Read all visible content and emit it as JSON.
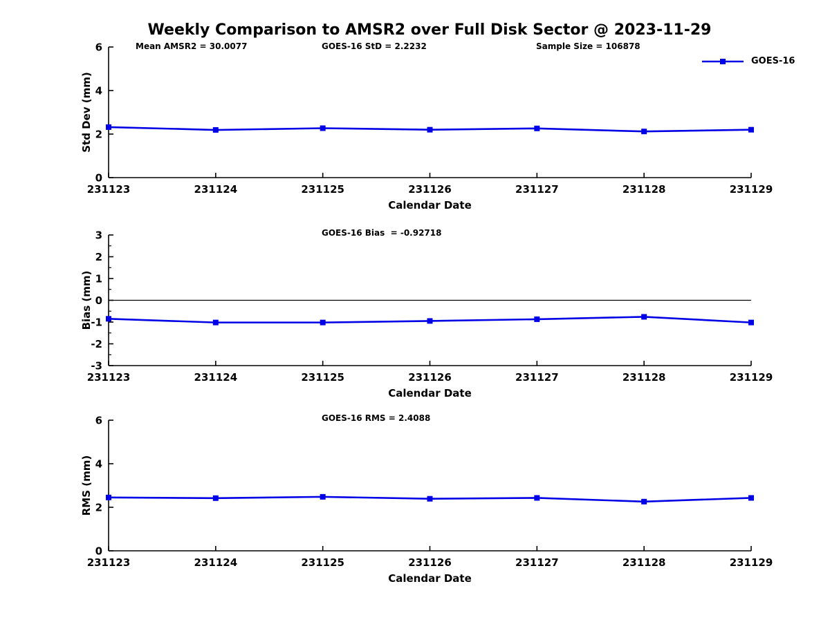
{
  "title": "Weekly Comparison to AMSR2 over Full Disk Sector @ 2023-11-29",
  "annotations": {
    "mean_amsr2": "Mean AMSR2 = 30.0077",
    "goes16_std": "GOES-16 StD = 2.2232",
    "sample_size": "Sample Size = 106878",
    "goes16_bias": "GOES-16 Bias  = -0.92718",
    "goes16_rms": "GOES-16 RMS = 2.4088"
  },
  "legend": {
    "label": "GOES-16"
  },
  "colors": {
    "line": "#0000e6",
    "axis": "#000000",
    "background": "#ffffff"
  },
  "chart_data": [
    {
      "id": "std_dev",
      "type": "line",
      "xlabel": "Calendar Date",
      "ylabel": "Std Dev (mm)",
      "categories": [
        "231123",
        "231124",
        "231125",
        "231126",
        "231127",
        "231128",
        "231129"
      ],
      "series": [
        {
          "name": "GOES-16",
          "values": [
            2.32,
            2.19,
            2.27,
            2.2,
            2.26,
            2.12,
            2.2
          ]
        }
      ],
      "ylim": [
        0,
        6
      ],
      "yticks": [
        0,
        2,
        4,
        6
      ],
      "yticks_minor": [],
      "zero_line": false,
      "grid": false,
      "legend_position": "upper-right-outside",
      "annotation": "GOES-16 StD = 2.2232"
    },
    {
      "id": "bias",
      "type": "line",
      "xlabel": "Calendar Date",
      "ylabel": "Bias (mm)",
      "categories": [
        "231123",
        "231124",
        "231125",
        "231126",
        "231127",
        "231128",
        "231129"
      ],
      "series": [
        {
          "name": "GOES-16",
          "values": [
            -0.85,
            -1.02,
            -1.02,
            -0.95,
            -0.87,
            -0.76,
            -1.02
          ]
        }
      ],
      "ylim": [
        -3,
        3
      ],
      "yticks": [
        -3,
        -2,
        -1,
        0,
        1,
        2,
        3
      ],
      "yticks_minor": [
        -2.5,
        -1.5,
        -0.5,
        0.5,
        1.5,
        2.5
      ],
      "zero_line": true,
      "grid": false,
      "annotation": "GOES-16 Bias  = -0.92718"
    },
    {
      "id": "rms",
      "type": "line",
      "xlabel": "Calendar Date",
      "ylabel": "RMS (mm)",
      "categories": [
        "231123",
        "231124",
        "231125",
        "231126",
        "231127",
        "231128",
        "231129"
      ],
      "series": [
        {
          "name": "GOES-16",
          "values": [
            2.45,
            2.42,
            2.48,
            2.39,
            2.43,
            2.26,
            2.43
          ]
        }
      ],
      "ylim": [
        0,
        6
      ],
      "yticks": [
        0,
        2,
        4,
        6
      ],
      "yticks_minor": [],
      "zero_line": false,
      "grid": false,
      "annotation": "GOES-16 RMS = 2.4088"
    }
  ]
}
